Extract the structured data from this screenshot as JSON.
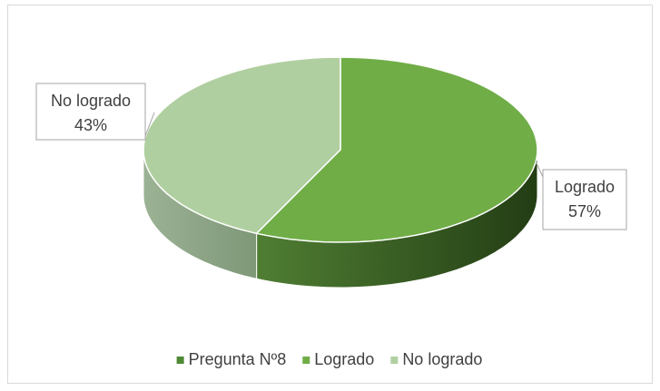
{
  "chart_data": {
    "type": "pie",
    "series_name": "Pregunta Nº8",
    "series_color": "#4e8a36",
    "categories": [
      "Logrado",
      "No logrado"
    ],
    "values": [
      57,
      43
    ],
    "value_labels": [
      "57%",
      "43%"
    ],
    "colors": [
      "#70ad47",
      "#b0cfa0"
    ],
    "legend": "bottom"
  }
}
